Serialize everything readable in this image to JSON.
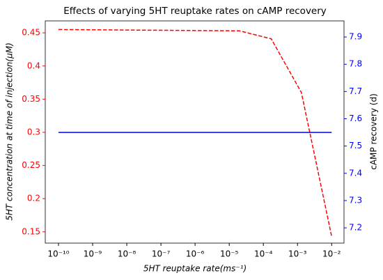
{
  "chart_data": {
    "type": "line",
    "title": "Effects of varying 5HT reuptake rates on cAMP recovery",
    "xlabel": "5HT reuptake rate(ms⁻¹)",
    "ylabel": "5HT concentration at time of injection(μM)",
    "y2label": "cAMP recovery (d)",
    "xscale": "log",
    "xlim": [
      4.1e-11,
      0.023
    ],
    "xticks": [
      {
        "value": 1e-10,
        "label": "10⁻¹⁰"
      },
      {
        "value": 1e-09,
        "label": "10⁻⁹"
      },
      {
        "value": 1e-08,
        "label": "10⁻⁸"
      },
      {
        "value": 1e-07,
        "label": "10⁻⁷"
      },
      {
        "value": 1e-06,
        "label": "10⁻⁶"
      },
      {
        "value": 1e-05,
        "label": "10⁻⁵"
      },
      {
        "value": 0.0001,
        "label": "10⁻⁴"
      },
      {
        "value": 0.001,
        "label": "10⁻³"
      },
      {
        "value": 0.01,
        "label": "10⁻²"
      }
    ],
    "ylim": [
      0.133,
      0.468
    ],
    "yticks": [
      0.15,
      0.2,
      0.25,
      0.3,
      0.35,
      0.4,
      0.45
    ],
    "y2lim": [
      7.144,
      7.959
    ],
    "y2ticks": [
      7.2,
      7.3,
      7.4,
      7.5,
      7.6,
      7.7,
      7.8,
      7.9
    ],
    "series": [
      {
        "color": "#ff0000",
        "linestyle": "dashed",
        "axis": "y",
        "x": [
          1e-10,
          2e-05,
          0.00017,
          0.0013,
          0.01
        ],
        "values": [
          0.455,
          0.453,
          0.441,
          0.36,
          0.143
        ]
      },
      {
        "color": "#0000ff",
        "linestyle": "solid",
        "axis": "y2",
        "x": [
          1e-10,
          0.01
        ],
        "values": [
          7.55,
          7.55
        ]
      }
    ]
  }
}
